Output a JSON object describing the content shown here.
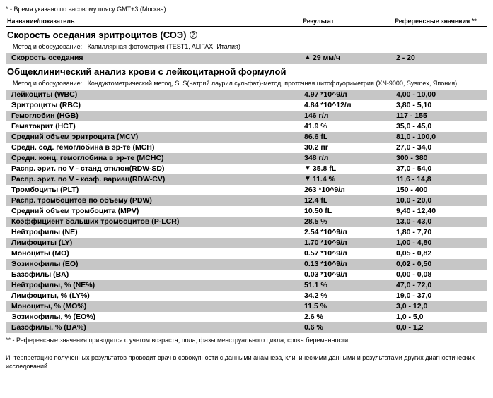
{
  "top_note": "* - Время указано по часовому поясу GMT+3 (Москва)",
  "columns": {
    "name": "Название/показатель",
    "result": "Результат",
    "ref": "Референсные значения **"
  },
  "section1": {
    "title": "Скорость оседания эритроцитов (СОЭ)",
    "method_label": "Метод и оборудование:",
    "method_value": "Капиллярная фотометрия (TEST1, ALIFAX, Италия)",
    "rows": [
      {
        "name": "Скорость оседания",
        "arrow": "up",
        "result": "29 мм/ч",
        "ref": "2 - 20",
        "shaded": true
      }
    ]
  },
  "section2": {
    "title": "Общеклинический анализ крови с лейкоцитарной формулой",
    "method_label": "Метод и оборудование:",
    "method_value": "Кондуктометрический метод, SLS(натрий лаурил сульфат)-метод, проточная цитофлуориметрия (XN-9000, Sysmex, Япония)",
    "rows": [
      {
        "name": "Лейкоциты (WBC)",
        "arrow": "",
        "result": "4.97 *10^9/л",
        "ref": "4,00 - 10,00",
        "shaded": true
      },
      {
        "name": "Эритроциты (RBC)",
        "arrow": "",
        "result": "4.84 *10^12/л",
        "ref": "3,80 - 5,10",
        "shaded": false
      },
      {
        "name": "Гемоглобин (HGB)",
        "arrow": "",
        "result": "146 г/л",
        "ref": "117 - 155",
        "shaded": true
      },
      {
        "name": "Гематокрит (HCT)",
        "arrow": "",
        "result": "41.9 %",
        "ref": "35,0 - 45,0",
        "shaded": false
      },
      {
        "name": "Средний объем эритроцита (MCV)",
        "arrow": "",
        "result": "86.6 fL",
        "ref": "81,0 - 100,0",
        "shaded": true
      },
      {
        "name": "Средн. сод. гемоглобина в эр-те (MCH)",
        "arrow": "",
        "result": "30.2 пг",
        "ref": "27,0 - 34,0",
        "shaded": false
      },
      {
        "name": "Средн. конц. гемоглобина в эр-те (MCHC)",
        "arrow": "",
        "result": "348 г/л",
        "ref": "300 - 380",
        "shaded": true
      },
      {
        "name": "Распр. эрит. по V - станд отклон(RDW-SD)",
        "arrow": "down",
        "result": "35.8 fL",
        "ref": "37,0 - 54,0",
        "shaded": false
      },
      {
        "name": "Распр. эрит. по V - коэф. вариац(RDW-CV)",
        "arrow": "down",
        "result": "11.4 %",
        "ref": "11,6 - 14,8",
        "shaded": true
      },
      {
        "name": "Тромбоциты (PLT)",
        "arrow": "",
        "result": "263 *10^9/л",
        "ref": "150 - 400",
        "shaded": false
      },
      {
        "name": "Распр. тромбоцитов по объему (PDW)",
        "arrow": "",
        "result": "12.4 fL",
        "ref": "10,0 - 20,0",
        "shaded": true
      },
      {
        "name": "Средний объем тромбоцита (MPV)",
        "arrow": "",
        "result": "10.50 fL",
        "ref": "9,40 - 12,40",
        "shaded": false
      },
      {
        "name": "Коэффициент больших тромбоцитов (P-LCR)",
        "arrow": "",
        "result": "28.5 %",
        "ref": "13,0 - 43,0",
        "shaded": true
      },
      {
        "name": "Нейтрофилы (NE)",
        "arrow": "",
        "result": "2.54 *10^9/л",
        "ref": "1,80 - 7,70",
        "shaded": false
      },
      {
        "name": "Лимфоциты (LY)",
        "arrow": "",
        "result": "1.70 *10^9/л",
        "ref": "1,00 - 4,80",
        "shaded": true
      },
      {
        "name": "Моноциты (MO)",
        "arrow": "",
        "result": "0.57 *10^9/л",
        "ref": "0,05 - 0,82",
        "shaded": false
      },
      {
        "name": "Эозинофилы (EO)",
        "arrow": "",
        "result": "0.13 *10^9/л",
        "ref": "0,02 - 0,50",
        "shaded": true
      },
      {
        "name": "Базофилы (BA)",
        "arrow": "",
        "result": "0.03 *10^9/л",
        "ref": "0,00 - 0,08",
        "shaded": false
      },
      {
        "name": "Нейтрофилы, % (NE%)",
        "arrow": "",
        "result": "51.1 %",
        "ref": "47,0 - 72,0",
        "shaded": true
      },
      {
        "name": "Лимфоциты, % (LY%)",
        "arrow": "",
        "result": "34.2 %",
        "ref": "19,0 - 37,0",
        "shaded": false
      },
      {
        "name": "Моноциты, % (MO%)",
        "arrow": "",
        "result": "11.5 %",
        "ref": "3,0 - 12,0",
        "shaded": true
      },
      {
        "name": "Эозинофилы, % (EO%)",
        "arrow": "",
        "result": "2.6 %",
        "ref": "1,0 - 5,0",
        "shaded": false
      },
      {
        "name": "Базофилы, % (BA%)",
        "arrow": "",
        "result": "0.6 %",
        "ref": "0,0 - 1,2",
        "shaded": true
      }
    ]
  },
  "footnote1": "** - Референсные значения приводятся с учетом возраста, пола, фазы менструального цикла, срока беременности.",
  "footnote2": "Интерпретацию полученных результатов проводит врач в совокупности с данными анамнеза, клиническими данными и результатами других диагностических исследований.",
  "colors": {
    "shaded_bg": "#c6c6c6",
    "text": "#000000",
    "bg": "#ffffff"
  }
}
